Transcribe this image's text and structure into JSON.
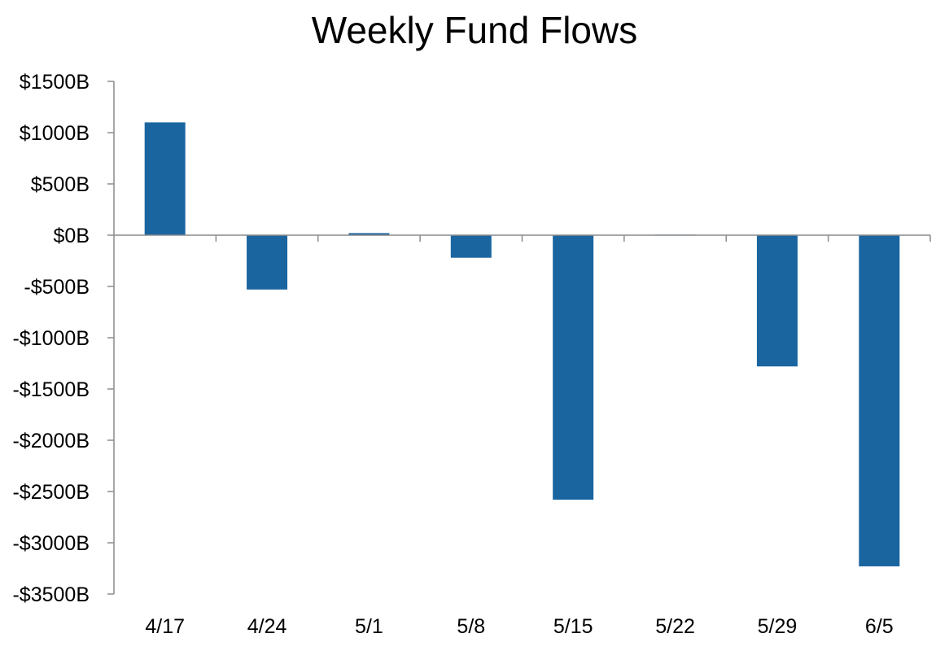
{
  "chart_data": {
    "type": "bar",
    "title": "Weekly Fund Flows",
    "xlabel": "",
    "ylabel": "",
    "categories": [
      "4/17",
      "4/24",
      "5/1",
      "5/8",
      "5/15",
      "5/22",
      "5/29",
      "6/5"
    ],
    "values": [
      1100,
      -530,
      20,
      -220,
      -2580,
      5,
      -1280,
      -3230
    ],
    "ylim": [
      -3500,
      1500
    ],
    "yticks": [
      1500,
      1000,
      500,
      0,
      -500,
      -1000,
      -1500,
      -2000,
      -2500,
      -3000,
      -3500
    ],
    "ytick_labels": [
      "$1500B",
      "$1000B",
      "$500B",
      "$0B",
      "-$500B",
      "-$1000B",
      "-$1500B",
      "-$2000B",
      "-$2500B",
      "-$3000B",
      "-$3500B"
    ],
    "bar_color": "#1a65a0",
    "axis_color": "#8c8c8c",
    "grid": false,
    "legend": "none"
  }
}
